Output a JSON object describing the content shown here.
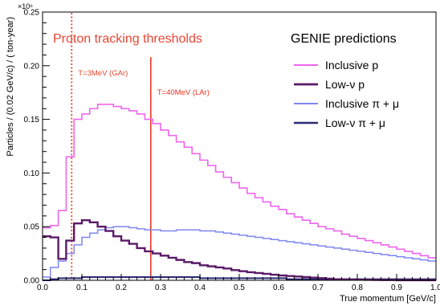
{
  "chart_data": {
    "type": "line",
    "style": "step-histogram",
    "title": "",
    "xlabel": "True momentum [GeV/c]",
    "ylabel": "Particles / (0.02 GeV/c) / ( ton-year)",
    "y_multiplier": "×10⁶",
    "xlim": [
      0,
      1.0
    ],
    "ylim": [
      0,
      0.25
    ],
    "bin_width": 0.02,
    "x_ticks": [
      "0.0",
      "0.1",
      "0.2",
      "0.3",
      "0.4",
      "0.5",
      "0.6",
      "0.7",
      "0.8",
      "0.9",
      "1.0"
    ],
    "y_ticks": [
      "0.00",
      "0.05",
      "0.10",
      "0.15",
      "0.20",
      "0.25"
    ],
    "legend": {
      "title": "GENIE predictions",
      "placement": "top-right"
    },
    "annotation_title": "Proton tracking thresholds",
    "thresholds": [
      {
        "label": "T=3MeV (GAr)",
        "x": 0.074,
        "style": "dotted",
        "color": "#e04a2f"
      },
      {
        "label": "T=40MeV (LAr)",
        "x": 0.275,
        "style": "solid",
        "color": "#ee3322"
      }
    ],
    "series": [
      {
        "name": "Inclusive p",
        "color": "#ee66ee",
        "width": 1.6,
        "values": [
          0.049,
          0.051,
          0.065,
          0.115,
          0.15,
          0.155,
          0.16,
          0.164,
          0.164,
          0.162,
          0.16,
          0.158,
          0.155,
          0.15,
          0.146,
          0.14,
          0.135,
          0.129,
          0.124,
          0.118,
          0.112,
          0.107,
          0.101,
          0.096,
          0.091,
          0.086,
          0.081,
          0.077,
          0.073,
          0.069,
          0.066,
          0.062,
          0.059,
          0.056,
          0.053,
          0.05,
          0.048,
          0.046,
          0.043,
          0.041,
          0.039,
          0.037,
          0.035,
          0.033,
          0.031,
          0.029,
          0.027,
          0.025,
          0.023,
          0.021
        ]
      },
      {
        "name": "Low-ν p",
        "color": "#5a1a68",
        "width": 2.4,
        "values": [
          0.041,
          0.04,
          0.02,
          0.037,
          0.053,
          0.056,
          0.054,
          0.05,
          0.046,
          0.041,
          0.037,
          0.034,
          0.03,
          0.027,
          0.025,
          0.023,
          0.021,
          0.019,
          0.017,
          0.016,
          0.014,
          0.013,
          0.012,
          0.011,
          0.0095,
          0.0085,
          0.0075,
          0.0068,
          0.006,
          0.0052,
          0.0045,
          0.004,
          0.0035,
          0.003,
          0.0025,
          0.002,
          0.0015,
          0.001,
          0.0008,
          0.0006,
          0.0005,
          0.0004,
          0.0003,
          0.0002,
          0.0002,
          0.0001,
          0.0001,
          0.0001,
          0.0001,
          0.0001
        ]
      },
      {
        "name": "Inclusive π + μ",
        "color": "#7f86f2",
        "width": 1.5,
        "values": [
          0.003,
          0.012,
          0.018,
          0.025,
          0.033,
          0.04,
          0.044,
          0.047,
          0.049,
          0.05,
          0.05,
          0.049,
          0.048,
          0.047,
          0.047,
          0.046,
          0.046,
          0.047,
          0.047,
          0.047,
          0.046,
          0.046,
          0.045,
          0.044,
          0.043,
          0.042,
          0.041,
          0.04,
          0.039,
          0.038,
          0.037,
          0.036,
          0.035,
          0.034,
          0.033,
          0.032,
          0.031,
          0.03,
          0.029,
          0.028,
          0.027,
          0.026,
          0.025,
          0.024,
          0.023,
          0.022,
          0.021,
          0.02,
          0.019,
          0.018
        ]
      },
      {
        "name": "Low-ν π + μ",
        "color": "#2a2a78",
        "width": 2.0,
        "values": [
          0.0,
          0.001,
          0.002,
          0.002,
          0.002,
          0.003,
          0.003,
          0.003,
          0.003,
          0.003,
          0.003,
          0.003,
          0.003,
          0.003,
          0.003,
          0.003,
          0.003,
          0.003,
          0.003,
          0.003,
          0.002,
          0.002,
          0.002,
          0.002,
          0.002,
          0.002,
          0.002,
          0.002,
          0.002,
          0.002,
          0.002,
          0.001,
          0.001,
          0.001,
          0.001,
          0.001,
          0.001,
          0.001,
          0.001,
          0.001,
          0.001,
          0.001,
          0.001,
          0.001,
          0.001,
          0.001,
          0.001,
          0.001,
          0.001,
          0.001
        ]
      }
    ]
  }
}
